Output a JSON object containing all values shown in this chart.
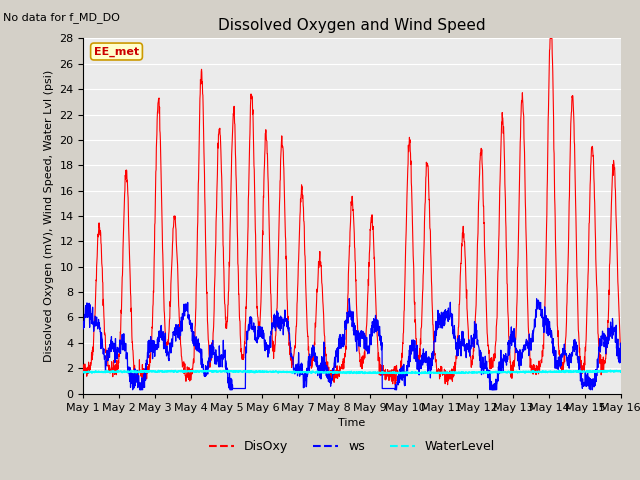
{
  "title": "Dissolved Oxygen and Wind Speed",
  "ylabel": "Dissolved Oxygen (mV), Wind Speed, Water Lvl (psi)",
  "xlabel": "Time",
  "annotation_text": "No data for f_MD_DO",
  "station_label": "EE_met",
  "ylim": [
    0,
    28
  ],
  "yticks": [
    0,
    2,
    4,
    6,
    8,
    10,
    12,
    14,
    16,
    18,
    20,
    22,
    24,
    26,
    28
  ],
  "xtick_labels": [
    "May 1",
    "May 2",
    "May 3",
    "May 4",
    "May 5",
    "May 6",
    "May 7",
    "May 8",
    "May 9",
    "May 10",
    "May 11",
    "May 12",
    "May 13",
    "May 14",
    "May 15",
    "May 16"
  ],
  "n_days": 15,
  "disoxy_color": "red",
  "ws_color": "blue",
  "wl_color": "cyan",
  "disoxy_lw": 0.8,
  "ws_lw": 0.9,
  "wl_lw": 1.2,
  "fig_bg": "#d4d0c8",
  "ax_bg": "#ebebeb",
  "grid_color": "white",
  "station_box_face": "#ffffcc",
  "station_box_edge": "#cc9900",
  "station_text_color": "#cc0000",
  "title_fontsize": 11,
  "axis_label_fontsize": 8,
  "tick_fontsize": 8,
  "legend_fontsize": 9,
  "annotation_fontsize": 8,
  "station_fontsize": 8,
  "spike_centers": [
    0.45,
    1.2,
    2.1,
    2.55,
    3.3,
    3.8,
    4.2,
    4.7,
    5.1,
    5.55,
    6.1,
    6.6,
    7.5,
    8.05,
    9.1,
    9.6,
    10.6,
    11.1,
    11.7,
    12.25,
    13.05,
    13.65,
    14.2,
    14.8
  ],
  "spike_heights": [
    11,
    16,
    21,
    12,
    24,
    19,
    20,
    22,
    19,
    18,
    14,
    9,
    13,
    12,
    18,
    16,
    11,
    17,
    20,
    22,
    27,
    22,
    18,
    16
  ]
}
